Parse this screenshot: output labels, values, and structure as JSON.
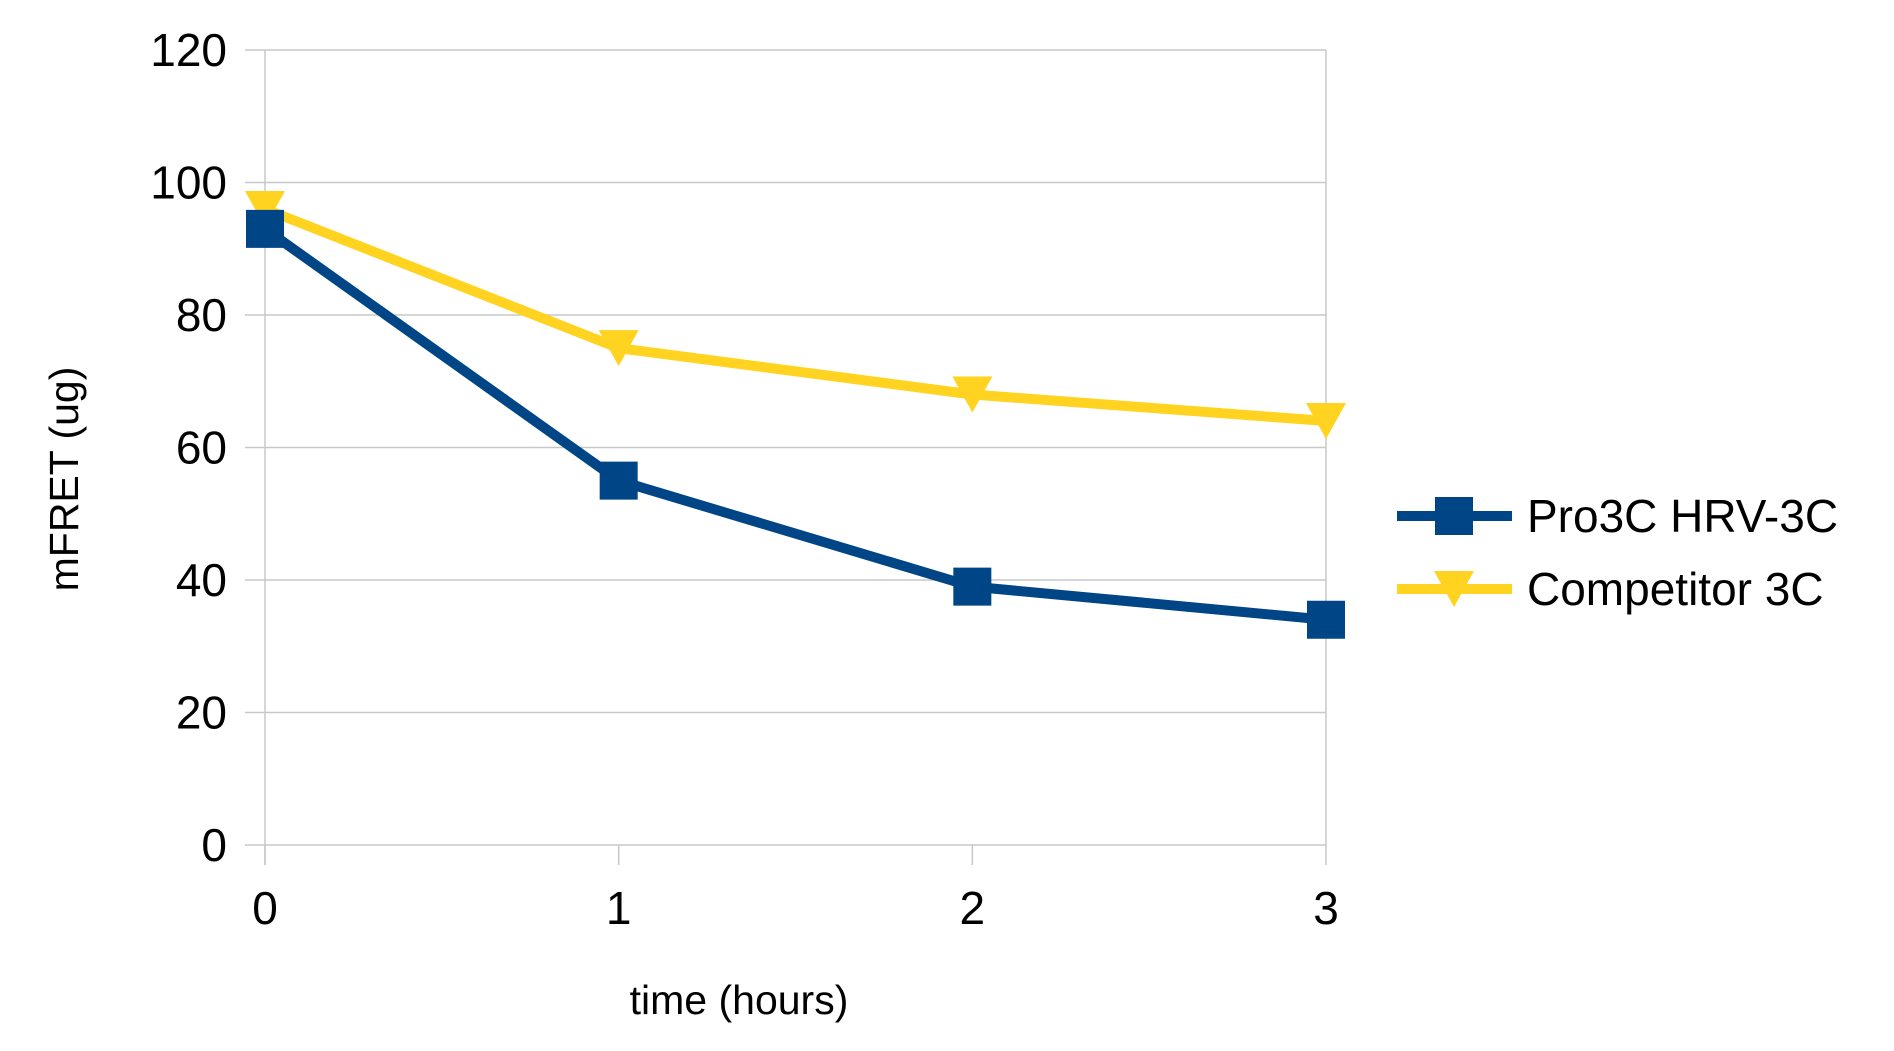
{
  "chart_data": {
    "type": "line",
    "title": "",
    "xlabel": "time (hours)",
    "ylabel": "mFRET (ug)",
    "x": [
      0,
      1,
      2,
      3
    ],
    "x_tick_labels": [
      "0",
      "1",
      "2",
      "3"
    ],
    "y_tick_labels": [
      "0",
      "20",
      "40",
      "60",
      "80",
      "100",
      "120"
    ],
    "ylim": [
      0,
      120
    ],
    "xlim": [
      0,
      3
    ],
    "grid": "horizontal",
    "legend_position": "right",
    "series": [
      {
        "name": "Pro3C HRV-3C",
        "values": [
          93,
          55,
          39,
          34
        ],
        "color": "#004586",
        "marker": "square"
      },
      {
        "name": "Competitor 3C",
        "values": [
          96,
          75,
          68,
          64
        ],
        "color": "#ffd320",
        "marker": "triangle-down"
      }
    ]
  }
}
